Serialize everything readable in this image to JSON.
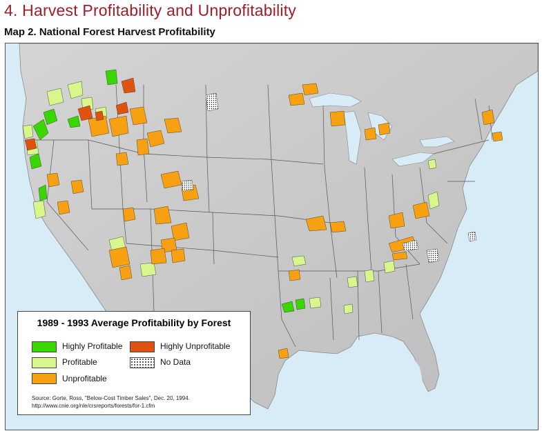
{
  "heading": "4.  Harvest Profitability and Unprofitability",
  "subheading": "Map 2. National Forest Harvest Profitability",
  "legend": {
    "title": "1989 - 1993 Average Profitability by Forest",
    "items": [
      {
        "label": "Highly Profitable",
        "color": "#39d600"
      },
      {
        "label": "Highly Unprofitable",
        "color": "#e0520f"
      },
      {
        "label": "Profitable",
        "color": "#d7f78c"
      },
      {
        "label": "No Data",
        "color": "#ffffff"
      },
      {
        "label": "Unprofitable",
        "color": "#f7a012"
      }
    ]
  },
  "source": {
    "line1": "Source:  Gorte, Ross, \"Below-Cost Timber Sales\", Dec. 20, 1994.",
    "line2": "http://www.cnie.org/nle/crsreports/forests/for-1.cfm"
  },
  "colors": {
    "title_red": "#a01c2a",
    "land": "#c6c6c6",
    "water": "#d8ecf7"
  }
}
